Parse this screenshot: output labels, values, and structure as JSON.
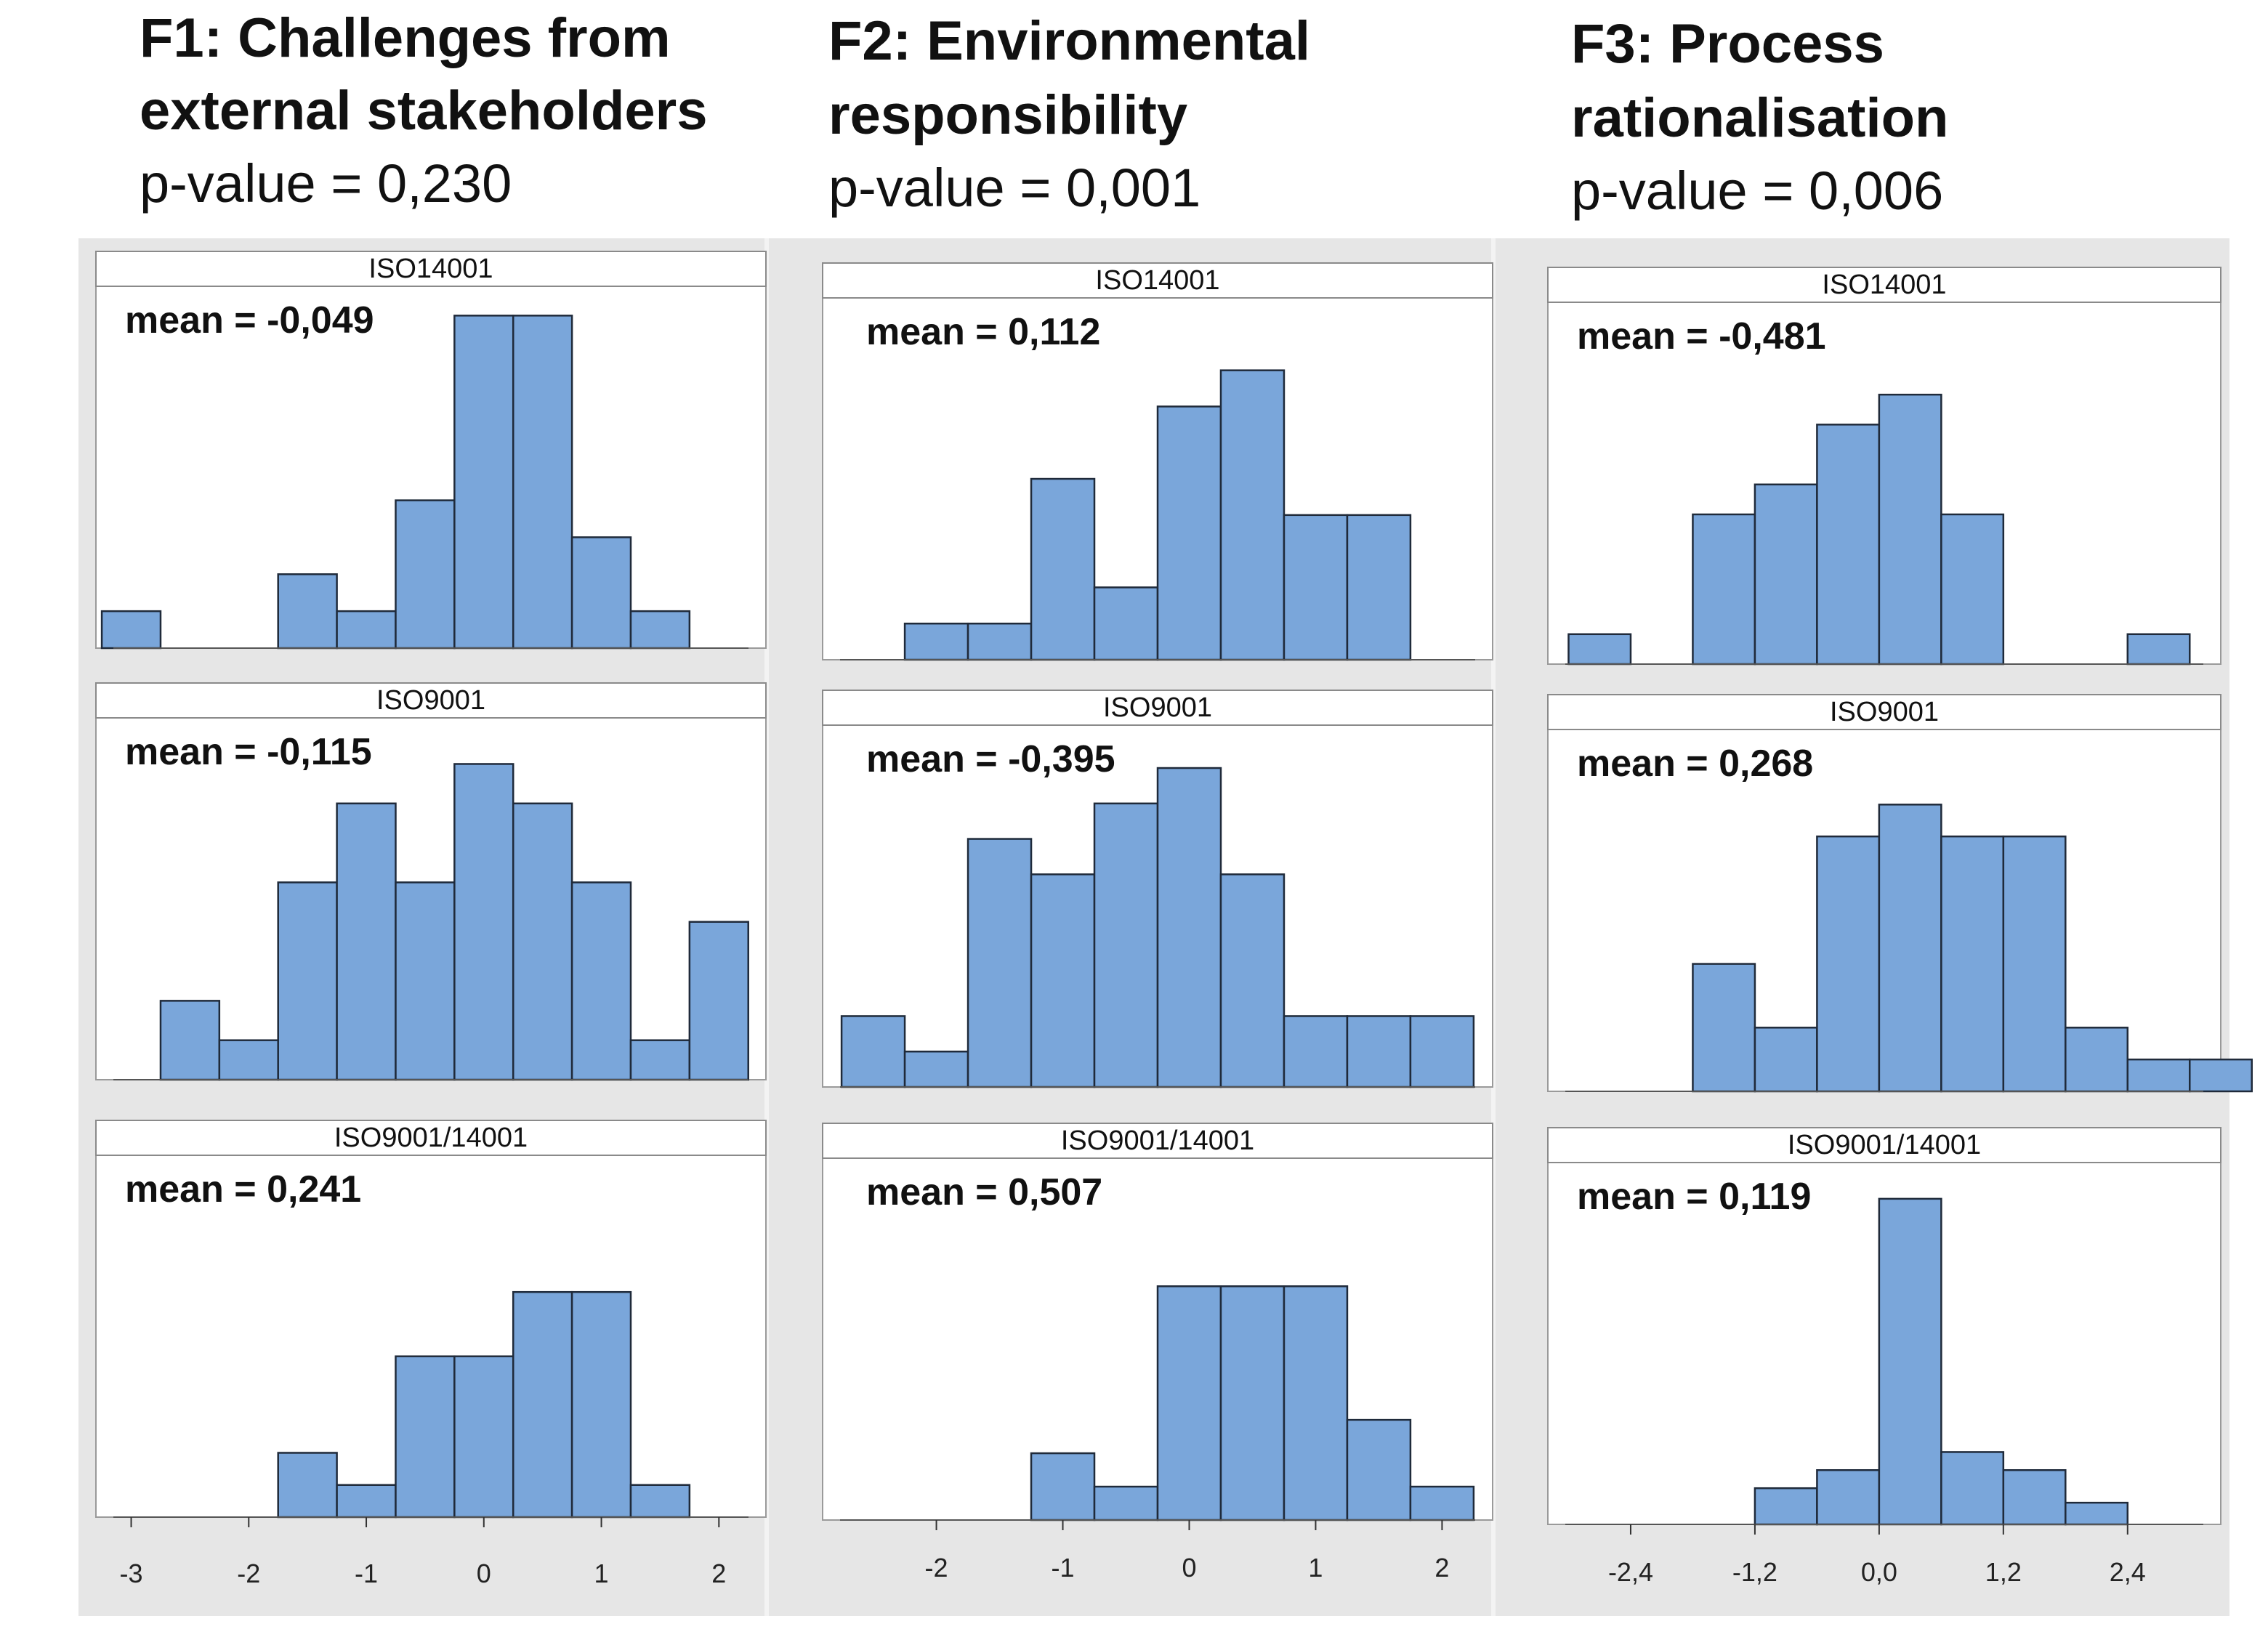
{
  "chart_data": [
    {
      "type": "bar",
      "title_line1": "F1: Challenges from",
      "title_line2": "external stakeholders",
      "p_value": "p-value = 0,230",
      "xticks": [
        "-3",
        "-2",
        "-1",
        "0",
        "1",
        "2"
      ],
      "xtick_values": [
        -3,
        -2,
        -1,
        0,
        1,
        2
      ],
      "xlim": [
        -3.3,
        2.4
      ],
      "bin_start": -3.25,
      "bin_width": 0.5,
      "panels": [
        {
          "label": "ISO14001",
          "mean_text": "mean = -0,049",
          "counts": [
            1,
            0,
            0,
            2,
            1,
            4,
            9,
            9,
            3,
            1,
            0
          ],
          "ymax": 9.4
        },
        {
          "label": "ISO9001",
          "mean_text": "mean = -0,115",
          "counts": [
            0,
            2,
            1,
            5,
            7,
            5,
            8,
            7,
            5,
            1,
            4
          ],
          "ymax": 8.8
        },
        {
          "label": "ISO9001/14001",
          "mean_text": "mean = 0,241",
          "counts": [
            0,
            0,
            0,
            2,
            1,
            5,
            5,
            7,
            7,
            1,
            0
          ],
          "ymax": 10.8
        }
      ]
    },
    {
      "type": "bar",
      "title_line1": "F2: Environmental",
      "title_line2": "responsibility",
      "p_value": "p-value = 0,001",
      "xticks": [
        "-2",
        "-1",
        "0",
        "1",
        "2"
      ],
      "xtick_values": [
        -2,
        -1,
        0,
        1,
        2
      ],
      "xlim": [
        -2.9,
        2.4
      ],
      "bin_start": -2.75,
      "bin_width": 0.5,
      "panels": [
        {
          "label": "ISO14001",
          "mean_text": "mean = 0,112",
          "counts": [
            0,
            1,
            1,
            5,
            2,
            7,
            8,
            4,
            4,
            0
          ],
          "ymax": 9.6
        },
        {
          "label": "ISO9001",
          "mean_text": "mean = -0,395",
          "counts": [
            2,
            1,
            7,
            6,
            8,
            9,
            6,
            2,
            2,
            2
          ],
          "ymax": 9.8
        },
        {
          "label": "ISO9001/14001",
          "mean_text": "mean = 0,507",
          "counts": [
            0,
            0,
            0,
            2,
            1,
            7,
            7,
            7,
            3,
            1
          ],
          "ymax": 10.4
        }
      ]
    },
    {
      "type": "bar",
      "title_line1": "F3: Process",
      "title_line2": "rationalisation",
      "p_value": "p-value = 0,006",
      "xticks": [
        "-2,4",
        "-1,2",
        "0,0",
        "1,2",
        "2,4"
      ],
      "xtick_values": [
        -2.4,
        -1.2,
        0,
        1.2,
        2.4
      ],
      "xlim": [
        -3.2,
        3.3
      ],
      "bin_start": -3.0,
      "bin_width": 0.6,
      "panels": [
        {
          "label": "ISO14001",
          "mean_text": "mean = -0,481",
          "counts": [
            1,
            0,
            5,
            6,
            8,
            9,
            5,
            0,
            0,
            1,
            0
          ],
          "ymax": 11.6
        },
        {
          "label": "ISO9001",
          "mean_text": "mean = 0,268",
          "counts": [
            0,
            0,
            4,
            2,
            8,
            9,
            8,
            8,
            2,
            1,
            1
          ],
          "ymax": 10.9
        },
        {
          "label": "ISO9001/14001",
          "mean_text": "mean = 0,119",
          "counts": [
            0,
            0,
            0,
            1,
            1.5,
            9,
            2,
            1.5,
            0.6,
            0,
            0
          ],
          "ymax": 9.6
        }
      ]
    }
  ],
  "colors": {
    "bar_fill": "#7aa6da",
    "bar_stroke": "#1f2a3a",
    "panel_bg": "#e6e6e6",
    "plot_bg": "#ffffff"
  }
}
